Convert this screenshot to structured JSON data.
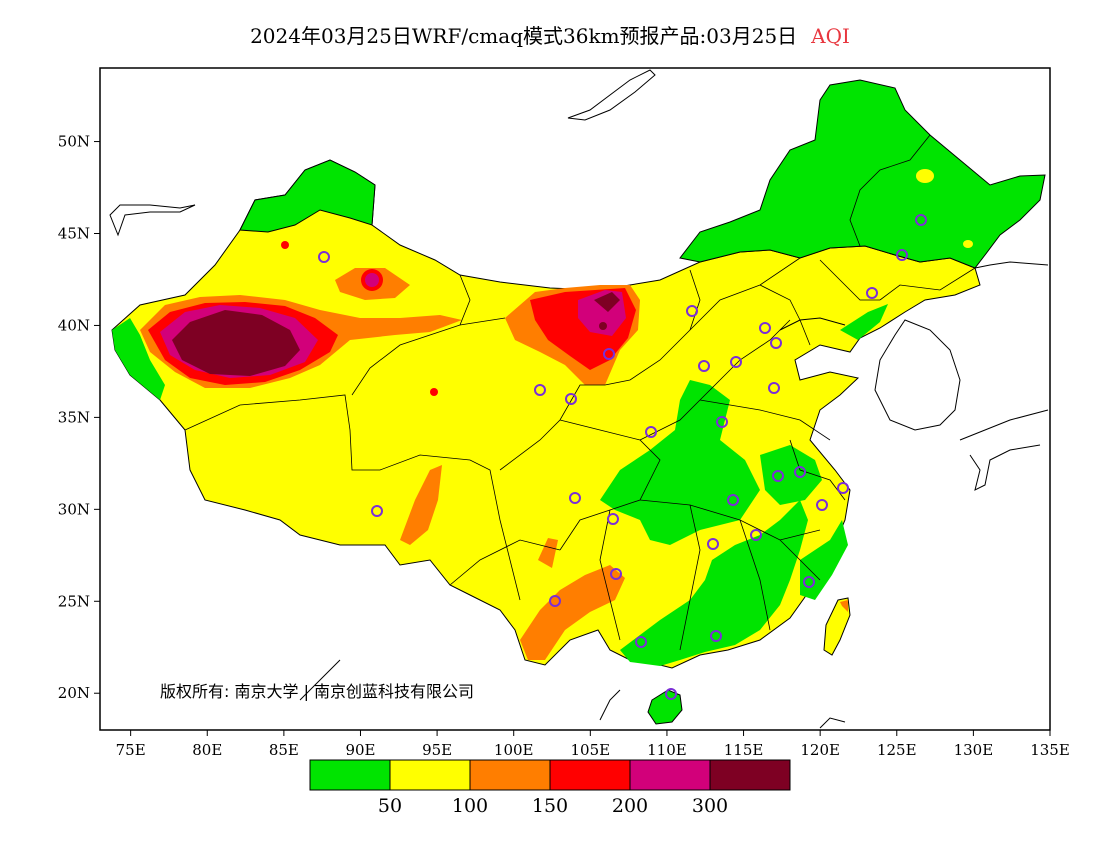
{
  "header": {
    "title": "2024年03月25日WRF/cmaq模式36km预报产品:03月25日",
    "subtitle": "AQI",
    "subtitle_color": "#e8373f"
  },
  "map": {
    "lon_range": [
      73,
      135
    ],
    "lat_range": [
      18,
      54
    ],
    "x_ticks": [
      "75E",
      "80E",
      "85E",
      "90E",
      "95E",
      "100E",
      "105E",
      "110E",
      "115E",
      "120E",
      "125E",
      "130E",
      "135E"
    ],
    "y_ticks": [
      "20N",
      "25N",
      "30N",
      "35N",
      "40N",
      "45N",
      "50N"
    ],
    "copyright": "版权所有: 南京大学 | 南京创蓝科技有限公司"
  },
  "legend": {
    "thresholds": [
      "50",
      "100",
      "150",
      "200",
      "300"
    ],
    "colors": [
      "#00e400",
      "#ffff00",
      "#ff7e00",
      "#ff0000",
      "#d2007a",
      "#7e0023"
    ]
  }
}
